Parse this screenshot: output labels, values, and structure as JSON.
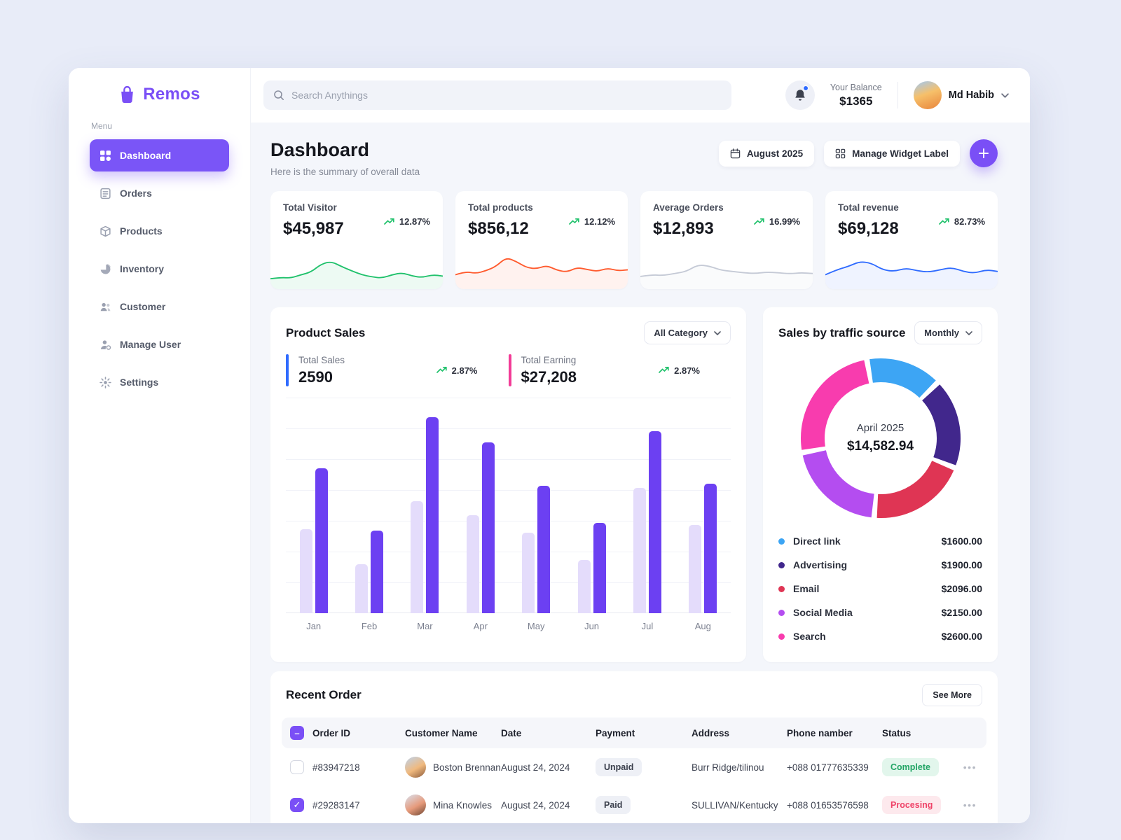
{
  "app": {
    "name": "Remos"
  },
  "sidebar": {
    "menu_label": "Menu",
    "items": [
      {
        "id": "dashboard",
        "label": "Dashboard",
        "icon": "dashboard-icon",
        "active": true
      },
      {
        "id": "orders",
        "label": "Orders",
        "icon": "orders-icon",
        "active": false
      },
      {
        "id": "products",
        "label": "Products",
        "icon": "products-icon",
        "active": false
      },
      {
        "id": "inventory",
        "label": "Inventory",
        "icon": "inventory-icon",
        "active": false
      },
      {
        "id": "customer",
        "label": "Customer",
        "icon": "customer-icon",
        "active": false
      },
      {
        "id": "manage-user",
        "label": "Manage User",
        "icon": "manage-user-icon",
        "active": false
      },
      {
        "id": "settings",
        "label": "Settings",
        "icon": "settings-icon",
        "active": false
      }
    ]
  },
  "header": {
    "search_placeholder": "Search Anythings",
    "balance_label": "Your Balance",
    "balance_value": "$1365",
    "user_name": "Md Habib"
  },
  "page": {
    "title": "Dashboard",
    "subtitle": "Here is the summary of overall data",
    "date_label": "August 2025",
    "widget_label": "Manage Widget Label"
  },
  "stats": [
    {
      "label": "Total Visitor",
      "value": "$45,987",
      "trend": "12.87%"
    },
    {
      "label": "Total products",
      "value": "$856,12",
      "trend": "12.12%"
    },
    {
      "label": "Average Orders",
      "value": "$12,893",
      "trend": "16.99%"
    },
    {
      "label": "Total revenue",
      "value": "$69,128",
      "trend": "82.73%"
    }
  ],
  "product_sales": {
    "title": "Product Sales",
    "filter_label": "All Category",
    "total_sales_label": "Total Sales",
    "total_sales_value": "2590",
    "total_sales_trend": "2.87%",
    "total_earning_label": "Total Earning",
    "total_earning_value": "$27,208",
    "total_earning_trend": "2.87%"
  },
  "traffic": {
    "title": "Sales by traffic source",
    "filter_label": "Monthly",
    "center_label": "April 2025",
    "center_value": "$14,582.94"
  },
  "recent_orders": {
    "title": "Recent Order",
    "see_more_label": "See More",
    "columns": [
      "Order ID",
      "Customer Name",
      "Date",
      "Payment",
      "Address",
      "Phone namber",
      "Status"
    ],
    "rows": [
      {
        "checked": false,
        "order_id": "#83947218",
        "customer": "Boston Brennan",
        "date": "August 24, 2024",
        "payment": "Unpaid",
        "address": "Burr Ridge/tilinou",
        "phone": "+088 01777635339",
        "status": "Complete",
        "status_type": "complete"
      },
      {
        "checked": true,
        "order_id": "#29283147",
        "customer": "Mina Knowles",
        "date": "August 24, 2024",
        "payment": "Paid",
        "address": "SULLIVAN/Kentucky",
        "phone": "+088 01653576598",
        "status": "Procesing",
        "status_type": "processing"
      }
    ]
  },
  "chart_data": [
    {
      "id": "product-sales-bars",
      "type": "bar",
      "title": "Product Sales",
      "categories": [
        "Jan",
        "Feb",
        "Mar",
        "Apr",
        "May",
        "Jun",
        "Jul",
        "Aug"
      ],
      "series": [
        {
          "name": "Sales",
          "color": "#e4dcfb",
          "values": [
            43,
            25,
            57,
            50,
            41,
            27,
            64,
            45
          ]
        },
        {
          "name": "Earning",
          "color": "#6c40f2",
          "values": [
            74,
            42,
            100,
            87,
            65,
            46,
            93,
            66
          ]
        }
      ],
      "xlabel": "",
      "ylabel": "",
      "ylim": [
        0,
        100
      ],
      "grid": true,
      "legend": "none"
    },
    {
      "id": "traffic-donut",
      "type": "pie",
      "title": "Sales by traffic source",
      "center_label": "April 2025",
      "center_value": "$14,582.94",
      "slices": [
        {
          "label": "Direct link",
          "value": 1600.0,
          "display": "$1600.00",
          "color": "#3da5f4"
        },
        {
          "label": "Advertising",
          "value": 1900.0,
          "display": "$1900.00",
          "color": "#41278c"
        },
        {
          "label": "Email",
          "value": 2096.0,
          "display": "$2096.00",
          "color": "#df3554"
        },
        {
          "label": "Social Media",
          "value": 2150.0,
          "display": "$2150.00",
          "color": "#b44df0"
        },
        {
          "label": "Search",
          "value": 2600.0,
          "display": "$2600.00",
          "color": "#f83cae"
        }
      ]
    },
    {
      "id": "spark-visitor",
      "type": "line",
      "color": "#1fc16b",
      "values": [
        18,
        22,
        20,
        30,
        38,
        62,
        70,
        55,
        42,
        30,
        24,
        20,
        30,
        36,
        26,
        22,
        30,
        26
      ]
    },
    {
      "id": "spark-products",
      "type": "line",
      "color": "#ff5b2e",
      "values": [
        30,
        40,
        34,
        42,
        55,
        82,
        70,
        52,
        48,
        58,
        44,
        38,
        52,
        46,
        40,
        50,
        42,
        45
      ]
    },
    {
      "id": "spark-orders",
      "type": "line",
      "color": "#c5cad6",
      "values": [
        25,
        30,
        28,
        34,
        40,
        60,
        56,
        44,
        40,
        36,
        34,
        38,
        36,
        33,
        36,
        34
      ]
    },
    {
      "id": "spark-revenue",
      "type": "line",
      "color": "#2f6bff",
      "values": [
        30,
        45,
        55,
        70,
        65,
        45,
        40,
        50,
        42,
        38,
        45,
        52,
        40,
        35,
        45,
        40
      ]
    }
  ]
}
